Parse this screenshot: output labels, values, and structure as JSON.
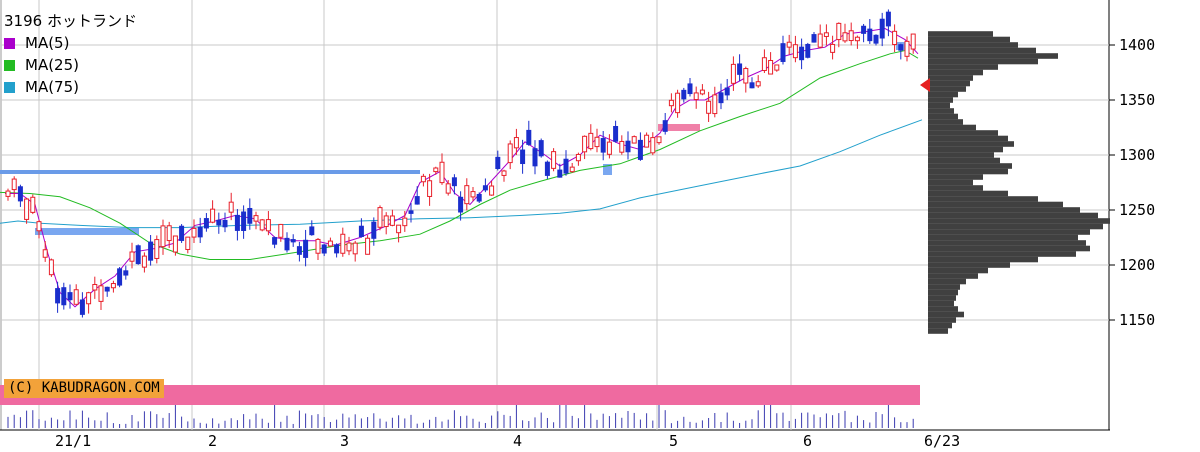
{
  "chart_data": {
    "type": "candlestick",
    "title": "3196 ホットランド",
    "x_labels": [
      "21/1",
      "2",
      "3",
      "4",
      "5",
      "6",
      "6/23"
    ],
    "y_ticks": [
      1150,
      1200,
      1250,
      1300,
      1350,
      1400
    ],
    "ylim": [
      1130,
      1440
    ],
    "grid": true,
    "legend_position": "top-left",
    "legend": [
      {
        "label": "MA(5)",
        "color": "#aa00cc"
      },
      {
        "label": "MA(25)",
        "color": "#22bb22"
      },
      {
        "label": "MA(75)",
        "color": "#22a0cc"
      }
    ],
    "last_price_marker": 1370,
    "ma75": [
      [
        0,
        1238
      ],
      [
        18,
        1240
      ],
      [
        40,
        1238
      ],
      [
        80,
        1236
      ],
      [
        130,
        1234
      ],
      [
        180,
        1234
      ],
      [
        240,
        1236
      ],
      [
        300,
        1237
      ],
      [
        360,
        1240
      ],
      [
        420,
        1242
      ],
      [
        470,
        1243
      ],
      [
        520,
        1245
      ],
      [
        560,
        1247
      ],
      [
        600,
        1251
      ],
      [
        640,
        1261
      ],
      [
        700,
        1272
      ],
      [
        760,
        1283
      ],
      [
        800,
        1290
      ],
      [
        840,
        1303
      ],
      [
        880,
        1318
      ],
      [
        922,
        1332
      ]
    ],
    "ma25": [
      [
        0,
        1266
      ],
      [
        30,
        1265
      ],
      [
        60,
        1262
      ],
      [
        90,
        1252
      ],
      [
        120,
        1238
      ],
      [
        150,
        1220
      ],
      [
        180,
        1210
      ],
      [
        210,
        1205
      ],
      [
        250,
        1205
      ],
      [
        300,
        1212
      ],
      [
        340,
        1218
      ],
      [
        380,
        1222
      ],
      [
        420,
        1228
      ],
      [
        450,
        1240
      ],
      [
        480,
        1255
      ],
      [
        510,
        1268
      ],
      [
        540,
        1276
      ],
      [
        580,
        1286
      ],
      [
        620,
        1292
      ],
      [
        660,
        1305
      ],
      [
        700,
        1322
      ],
      [
        740,
        1335
      ],
      [
        780,
        1347
      ],
      [
        820,
        1370
      ],
      [
        860,
        1383
      ],
      [
        890,
        1392
      ],
      [
        905,
        1395
      ],
      [
        918,
        1388
      ]
    ],
    "ma5": [
      [
        5,
        1265
      ],
      [
        20,
        1265
      ],
      [
        35,
        1255
      ],
      [
        48,
        1210
      ],
      [
        60,
        1175
      ],
      [
        75,
        1162
      ],
      [
        95,
        1178
      ],
      [
        115,
        1190
      ],
      [
        135,
        1212
      ],
      [
        155,
        1215
      ],
      [
        175,
        1220
      ],
      [
        195,
        1236
      ],
      [
        215,
        1240
      ],
      [
        235,
        1245
      ],
      [
        255,
        1242
      ],
      [
        275,
        1225
      ],
      [
        295,
        1222
      ],
      [
        315,
        1222
      ],
      [
        335,
        1218
      ],
      [
        360,
        1225
      ],
      [
        385,
        1235
      ],
      [
        405,
        1245
      ],
      [
        420,
        1275
      ],
      [
        440,
        1285
      ],
      [
        455,
        1265
      ],
      [
        470,
        1255
      ],
      [
        490,
        1275
      ],
      [
        510,
        1295
      ],
      [
        525,
        1312
      ],
      [
        545,
        1300
      ],
      [
        560,
        1290
      ],
      [
        580,
        1300
      ],
      [
        600,
        1318
      ],
      [
        620,
        1310
      ],
      [
        640,
        1305
      ],
      [
        660,
        1320
      ],
      [
        675,
        1342
      ],
      [
        690,
        1350
      ],
      [
        705,
        1350
      ],
      [
        725,
        1360
      ],
      [
        745,
        1370
      ],
      [
        765,
        1378
      ],
      [
        785,
        1390
      ],
      [
        805,
        1395
      ],
      [
        825,
        1398
      ],
      [
        845,
        1410
      ],
      [
        865,
        1412
      ],
      [
        885,
        1415
      ],
      [
        905,
        1405
      ],
      [
        918,
        1392
      ]
    ],
    "volume_profile": [
      [
        1410,
        65
      ],
      [
        1405,
        82
      ],
      [
        1400,
        90
      ],
      [
        1395,
        108
      ],
      [
        1390,
        130
      ],
      [
        1385,
        110
      ],
      [
        1380,
        70
      ],
      [
        1375,
        55
      ],
      [
        1370,
        45
      ],
      [
        1365,
        42
      ],
      [
        1360,
        38
      ],
      [
        1355,
        30
      ],
      [
        1350,
        25
      ],
      [
        1345,
        22
      ],
      [
        1340,
        26
      ],
      [
        1335,
        30
      ],
      [
        1330,
        35
      ],
      [
        1325,
        48
      ],
      [
        1320,
        70
      ],
      [
        1315,
        80
      ],
      [
        1310,
        86
      ],
      [
        1305,
        75
      ],
      [
        1300,
        66
      ],
      [
        1295,
        72
      ],
      [
        1290,
        84
      ],
      [
        1285,
        80
      ],
      [
        1280,
        55
      ],
      [
        1275,
        45
      ],
      [
        1270,
        55
      ],
      [
        1265,
        80
      ],
      [
        1260,
        110
      ],
      [
        1255,
        135
      ],
      [
        1250,
        152
      ],
      [
        1245,
        170
      ],
      [
        1240,
        182
      ],
      [
        1235,
        175
      ],
      [
        1230,
        162
      ],
      [
        1225,
        150
      ],
      [
        1220,
        158
      ],
      [
        1215,
        162
      ],
      [
        1210,
        148
      ],
      [
        1205,
        110
      ],
      [
        1200,
        82
      ],
      [
        1195,
        60
      ],
      [
        1190,
        50
      ],
      [
        1185,
        38
      ],
      [
        1180,
        32
      ],
      [
        1175,
        30
      ],
      [
        1170,
        28
      ],
      [
        1165,
        26
      ],
      [
        1160,
        30
      ],
      [
        1155,
        36
      ],
      [
        1150,
        28
      ],
      [
        1145,
        24
      ],
      [
        1140,
        20
      ]
    ]
  },
  "copyright": "(C) KABUDRAGON.COM"
}
